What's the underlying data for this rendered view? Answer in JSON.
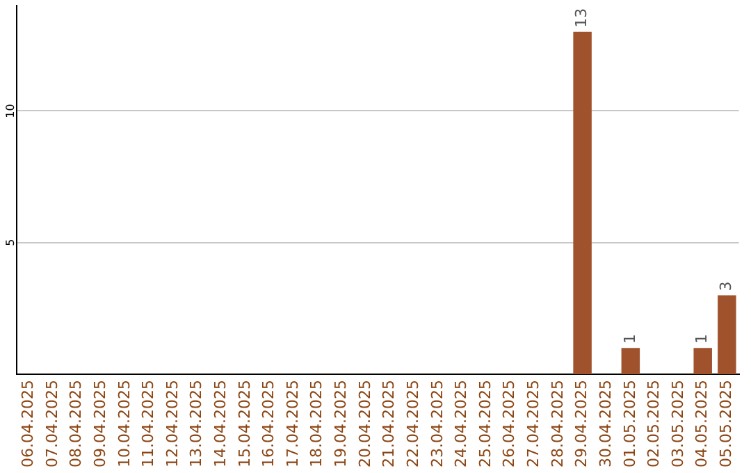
{
  "chart_data": {
    "type": "bar",
    "categories": [
      "06.04.2025",
      "07.04.2025",
      "08.04.2025",
      "09.04.2025",
      "10.04.2025",
      "11.04.2025",
      "12.04.2025",
      "13.04.2025",
      "14.04.2025",
      "15.04.2025",
      "16.04.2025",
      "17.04.2025",
      "18.04.2025",
      "19.04.2025",
      "20.04.2025",
      "21.04.2025",
      "22.04.2025",
      "23.04.2025",
      "24.04.2025",
      "25.04.2025",
      "26.04.2025",
      "27.04.2025",
      "28.04.2025",
      "29.04.2025",
      "30.04.2025",
      "01.05.2025",
      "02.05.2025",
      "03.05.2025",
      "04.05.2025",
      "05.05.2025"
    ],
    "values": [
      0,
      0,
      0,
      0,
      0,
      0,
      0,
      0,
      0,
      0,
      0,
      0,
      0,
      0,
      0,
      0,
      0,
      0,
      0,
      0,
      0,
      0,
      0,
      13,
      0,
      1,
      0,
      0,
      1,
      3
    ],
    "value_labels": [
      null,
      null,
      null,
      null,
      null,
      null,
      null,
      null,
      null,
      null,
      null,
      null,
      null,
      null,
      null,
      null,
      null,
      null,
      null,
      null,
      null,
      null,
      null,
      "13",
      null,
      "1",
      null,
      null,
      "1",
      "3"
    ],
    "color": "#a0522d",
    "ylim": [
      0,
      14
    ],
    "yticks": [
      5,
      10
    ],
    "grid": "y",
    "legend": false
  }
}
